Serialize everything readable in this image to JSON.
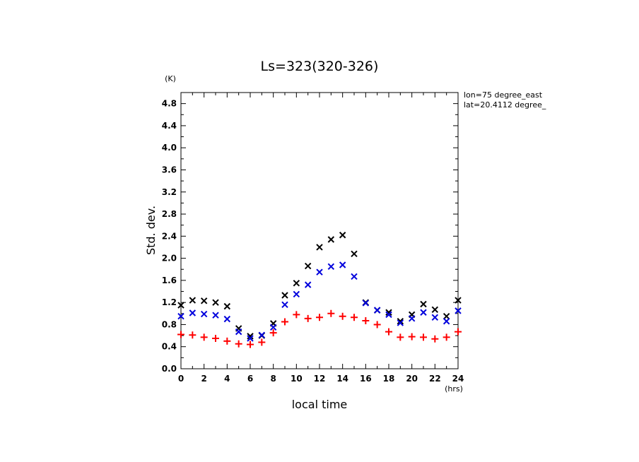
{
  "chart_data": {
    "type": "scatter",
    "title": "Ls=323(320-326)",
    "xlabel": "local time",
    "ylabel": "Std. dev.",
    "x_unit": "(hrs)",
    "y_unit": "(K)",
    "info_lines": [
      "lon=75 degree_east",
      "lat=20.4112 degree_"
    ],
    "xlim": [
      0,
      24
    ],
    "ylim": [
      0,
      5.0
    ],
    "x_ticks": [
      "0",
      "2",
      "4",
      "6",
      "8",
      "10",
      "12",
      "14",
      "16",
      "18",
      "20",
      "22",
      "24"
    ],
    "y_ticks": [
      "0.0",
      "0.4",
      "0.8",
      "1.2",
      "1.6",
      "2.0",
      "2.4",
      "2.8",
      "3.2",
      "3.6",
      "4.0",
      "4.4",
      "4.8"
    ],
    "grid": false,
    "legend": false,
    "x": [
      0,
      1,
      2,
      3,
      4,
      5,
      6,
      7,
      8,
      9,
      10,
      11,
      12,
      13,
      14,
      15,
      16,
      17,
      18,
      19,
      20,
      21,
      22,
      23,
      24
    ],
    "series": [
      {
        "marker": "x",
        "color": "#000000",
        "values": [
          1.15,
          1.24,
          1.23,
          1.2,
          1.13,
          0.73,
          0.59,
          0.6,
          0.82,
          1.33,
          1.55,
          1.86,
          2.2,
          2.34,
          2.42,
          2.08,
          1.2,
          1.06,
          1.02,
          0.86,
          0.98,
          1.17,
          1.07,
          0.95,
          1.24
        ]
      },
      {
        "marker": "x",
        "color": "#0000dd",
        "values": [
          0.95,
          1.01,
          0.99,
          0.97,
          0.9,
          0.67,
          0.55,
          0.61,
          0.75,
          1.16,
          1.35,
          1.52,
          1.75,
          1.85,
          1.88,
          1.67,
          1.19,
          1.06,
          0.98,
          0.83,
          0.91,
          1.02,
          0.93,
          0.86,
          1.05
        ]
      },
      {
        "marker": "+",
        "color": "#ff0000",
        "values": [
          0.62,
          0.61,
          0.57,
          0.55,
          0.5,
          0.45,
          0.44,
          0.48,
          0.65,
          0.85,
          0.98,
          0.91,
          0.93,
          1.0,
          0.95,
          0.93,
          0.87,
          0.8,
          0.67,
          0.57,
          0.58,
          0.57,
          0.54,
          0.57,
          0.67
        ]
      }
    ]
  }
}
